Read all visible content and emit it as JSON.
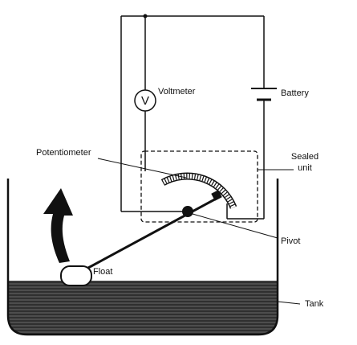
{
  "labels": {
    "voltmeter": "Voltmeter",
    "voltmeter_symbol": "V",
    "battery": "Battery",
    "potentiometer": "Potentiometer",
    "sealed_unit_line1": "Sealed",
    "sealed_unit_line2": "unit",
    "pivot": "Pivot",
    "float": "Float",
    "tank": "Tank"
  },
  "colors": {
    "ink": "#111111",
    "liquid": "#3a3a3a",
    "background": "#ffffff"
  }
}
